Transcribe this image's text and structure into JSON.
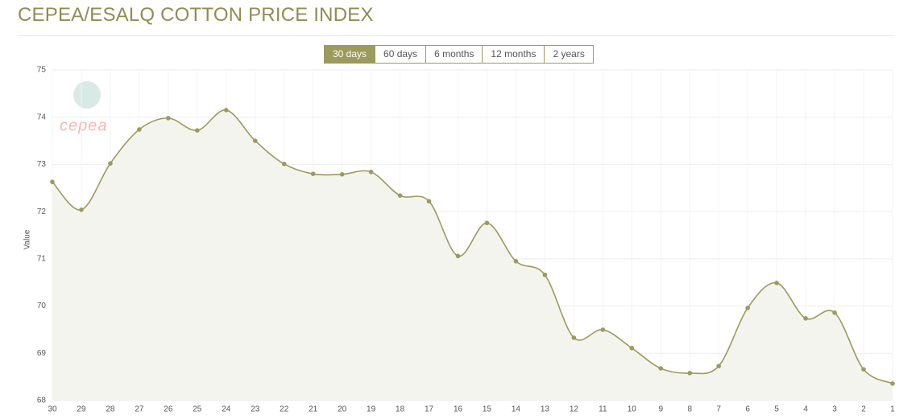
{
  "chart_data": {
    "type": "line",
    "title": "CEPEA/ESALQ COTTON PRICE INDEX",
    "range_buttons": [
      "30 days",
      "60 days",
      "6 months",
      "12 months",
      "2 years"
    ],
    "active_button": 0,
    "watermark": "cepea",
    "y_label": "Value",
    "categories": [
      "30",
      "29",
      "28",
      "27",
      "26",
      "25",
      "24",
      "23",
      "22",
      "21",
      "20",
      "19",
      "18",
      "17",
      "16",
      "15",
      "14",
      "13",
      "12",
      "11",
      "10",
      "9",
      "8",
      "7",
      "6",
      "5",
      "4",
      "3",
      "2",
      "1"
    ],
    "series": [
      {
        "color": "#9c9a5c",
        "values": [
          72.63,
          72.04,
          73.02,
          73.74,
          73.98,
          73.72,
          74.15,
          73.5,
          73.01,
          72.8,
          72.79,
          72.84,
          72.34,
          72.22,
          71.06,
          71.76,
          70.95,
          70.66,
          69.33,
          69.5,
          69.11,
          68.68,
          68.58,
          68.73,
          69.96,
          70.49,
          69.74,
          69.86,
          68.66,
          68.36
        ]
      }
    ],
    "ylim": [
      68,
      75
    ],
    "yticks": [
      68,
      69,
      70,
      71,
      72,
      73,
      74,
      75
    ],
    "grid": true
  }
}
